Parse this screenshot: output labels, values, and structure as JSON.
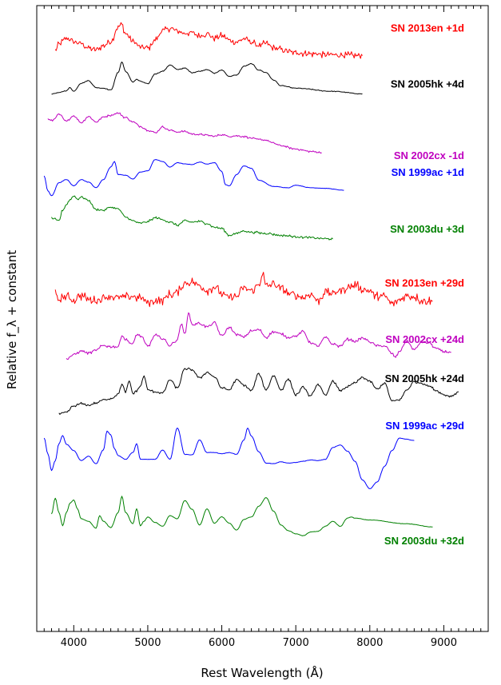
{
  "chart_data": {
    "type": "line",
    "title": "",
    "xlabel": "Rest Wavelength  (Å)",
    "ylabel": "Relative f_λ + constant",
    "xlim": [
      3500,
      9600
    ],
    "x_ticks": [
      4000,
      5000,
      6000,
      7000,
      8000,
      9000
    ],
    "grid": false,
    "legend": "labels placed beside each spectrum",
    "series": [
      {
        "name": "SN 2013en +1d",
        "color": "#ff0000",
        "noise": 0.8,
        "x": [
          3750,
          3800,
          3900,
          4000,
          4100,
          4200,
          4300,
          4400,
          4500,
          4600,
          4650,
          4700,
          4800,
          4900,
          5000,
          5100,
          5200,
          5300,
          5400,
          5500,
          5600,
          5700,
          5800,
          5900,
          6000,
          6100,
          6200,
          6300,
          6400,
          6500,
          6600,
          6700,
          6800,
          6900,
          7000,
          7200,
          7400,
          7600,
          7800,
          7900
        ],
        "y": [
          92.8,
          93.8,
          94.8,
          94.2,
          94.0,
          93.2,
          92.9,
          93.6,
          94.3,
          96.6,
          97.0,
          95.5,
          94.2,
          93.4,
          93.2,
          94.5,
          96.0,
          96.4,
          95.9,
          95.6,
          95.7,
          95.1,
          95.5,
          94.8,
          95.2,
          94.5,
          94.2,
          94.7,
          94.2,
          93.6,
          93.9,
          93.2,
          93.0,
          92.6,
          92.5,
          92.3,
          92.2,
          92.1,
          92.0,
          92.0
        ]
      },
      {
        "name": "SN 2005hk +4d",
        "color": "#000000",
        "noise": 0.1,
        "x": [
          3700,
          3800,
          3900,
          3950,
          4000,
          4100,
          4200,
          4300,
          4400,
          4500,
          4600,
          4650,
          4700,
          4800,
          4850,
          4900,
          5000,
          5100,
          5200,
          5300,
          5400,
          5500,
          5600,
          5700,
          5800,
          5900,
          6000,
          6100,
          6200,
          6300,
          6400,
          6500,
          6600,
          6700,
          6800,
          7000,
          7500,
          7900
        ],
        "y": [
          85.9,
          86.1,
          86.4,
          86.9,
          86.3,
          87.6,
          88.0,
          86.9,
          86.8,
          86.5,
          89.3,
          91.0,
          89.5,
          87.8,
          88.2,
          87.9,
          87.5,
          89.1,
          89.5,
          90.5,
          89.8,
          90.0,
          89.3,
          89.5,
          89.8,
          89.2,
          89.7,
          88.7,
          88.9,
          90.3,
          90.7,
          89.7,
          89.3,
          88.1,
          87.2,
          86.8,
          86.3,
          85.9
        ]
      },
      {
        "name": "SN 2002cx -1d",
        "color": "#bf00bf",
        "noise": 0.25,
        "x": [
          3650,
          3700,
          3800,
          3900,
          4000,
          4100,
          4200,
          4300,
          4400,
          4500,
          4600,
          4700,
          4800,
          4900,
          5000,
          5100,
          5200,
          5300,
          5400,
          5500,
          5600,
          5700,
          5800,
          5900,
          6000,
          6100,
          6200,
          6300,
          6400,
          6500,
          6600,
          6700,
          6800,
          7000,
          7200,
          7350
        ],
        "y": [
          81.9,
          81.6,
          82.6,
          81.5,
          82.4,
          81.3,
          82.3,
          81.4,
          82.2,
          82.5,
          82.8,
          82.1,
          81.4,
          80.7,
          80.1,
          79.7,
          80.6,
          80.1,
          79.8,
          79.9,
          79.5,
          79.4,
          79.3,
          79.1,
          79.4,
          79.1,
          79.2,
          79.1,
          78.8,
          78.6,
          78.5,
          78.0,
          77.6,
          77.1,
          76.7,
          76.5
        ]
      },
      {
        "name": "SN 1999ac +1d",
        "color": "#0000ff",
        "noise": 0.05,
        "x": [
          3600,
          3650,
          3700,
          3800,
          3900,
          4000,
          4100,
          4200,
          4300,
          4400,
          4500,
          4550,
          4600,
          4700,
          4800,
          4900,
          5000,
          5100,
          5200,
          5300,
          5400,
          5500,
          5600,
          5700,
          5800,
          5900,
          6000,
          6050,
          6100,
          6200,
          6300,
          6400,
          6500,
          6700,
          6900,
          7000,
          7200,
          7400,
          7650
        ],
        "y": [
          72.8,
          70.4,
          69.6,
          71.7,
          72.2,
          71.2,
          72.2,
          71.8,
          70.9,
          72.2,
          74.2,
          75.1,
          73.0,
          72.9,
          72.3,
          73.4,
          73.6,
          75.4,
          75.1,
          74.2,
          74.9,
          74.7,
          74.6,
          75.0,
          74.7,
          74.9,
          73.5,
          71.4,
          71.2,
          73.0,
          74.4,
          74.0,
          72.1,
          71.1,
          70.9,
          71.3,
          70.9,
          70.8,
          70.5
        ]
      },
      {
        "name": "SN 2003du +3d",
        "color": "#008000",
        "noise": 0.3,
        "x": [
          3700,
          3800,
          3850,
          3900,
          3950,
          4000,
          4050,
          4100,
          4200,
          4300,
          4400,
          4500,
          4600,
          4700,
          4800,
          4900,
          5000,
          5100,
          5200,
          5300,
          5400,
          5500,
          5600,
          5700,
          5800,
          5900,
          6000,
          6100,
          6200,
          6300,
          6400,
          6600,
          6800,
          7000,
          7200,
          7500
        ],
        "y": [
          66.0,
          65.6,
          67.3,
          68.2,
          69.0,
          69.6,
          69.1,
          69.4,
          68.9,
          67.4,
          67.3,
          67.8,
          67.5,
          66.2,
          65.6,
          65.2,
          65.5,
          66.1,
          65.8,
          65.4,
          64.9,
          65.6,
          65.4,
          65.5,
          65.2,
          64.6,
          64.4,
          63.3,
          63.6,
          64.0,
          63.8,
          63.6,
          63.3,
          63.1,
          62.9,
          62.7
        ]
      },
      {
        "name": "SN 2013en +29d",
        "color": "#ff0000",
        "noise": 1.1,
        "x": [
          3750,
          3800,
          3900,
          4000,
          4100,
          4200,
          4300,
          4400,
          4500,
          4600,
          4700,
          4800,
          4900,
          5000,
          5100,
          5200,
          5300,
          5400,
          5500,
          5600,
          5700,
          5800,
          5900,
          6000,
          6100,
          6200,
          6300,
          6400,
          6500,
          6550,
          6600,
          6700,
          6800,
          6900,
          7000,
          7100,
          7200,
          7300,
          7400,
          7500,
          7600,
          7700,
          7800,
          7900,
          8000,
          8100,
          8200,
          8300,
          8400,
          8500,
          8600,
          8700,
          8850
        ],
        "y": [
          53.8,
          53.0,
          53.5,
          52.9,
          53.7,
          53.0,
          52.8,
          53.4,
          53.6,
          53.3,
          53.4,
          53.6,
          53.2,
          52.7,
          52.8,
          53.0,
          53.8,
          54.2,
          55.6,
          55.8,
          55.3,
          54.5,
          55.1,
          53.9,
          53.3,
          53.5,
          54.9,
          54.5,
          55.4,
          57.1,
          55.1,
          55.5,
          54.9,
          54.0,
          53.8,
          53.3,
          53.9,
          52.9,
          54.2,
          54.0,
          54.6,
          54.9,
          55.3,
          54.6,
          54.4,
          53.5,
          53.5,
          52.4,
          53.0,
          53.7,
          53.5,
          52.9,
          52.8
        ]
      },
      {
        "name": "SN 2002cx +24d",
        "color": "#bf00bf",
        "noise": 0.35,
        "x": [
          3900,
          4000,
          4100,
          4200,
          4300,
          4400,
          4500,
          4600,
          4650,
          4700,
          4800,
          4850,
          4900,
          5000,
          5100,
          5200,
          5300,
          5400,
          5450,
          5500,
          5550,
          5600,
          5700,
          5800,
          5900,
          6000,
          6100,
          6200,
          6300,
          6400,
          6500,
          6600,
          6700,
          6800,
          6900,
          7000,
          7100,
          7200,
          7300,
          7400,
          7500,
          7600,
          7700,
          7800,
          7900,
          8000,
          8100,
          8200,
          8300,
          8350,
          8400,
          8500,
          8600,
          8700,
          8800,
          8900,
          9000,
          9100
        ],
        "y": [
          43.6,
          44.2,
          44.8,
          44.5,
          44.9,
          45.7,
          45.5,
          45.5,
          47.3,
          46.6,
          45.9,
          47.5,
          47.2,
          45.6,
          47.3,
          46.8,
          45.7,
          46.6,
          49.1,
          47.5,
          50.8,
          49.0,
          49.2,
          48.7,
          49.3,
          47.2,
          48.6,
          47.4,
          47.1,
          48.0,
          48.2,
          47.0,
          47.9,
          47.5,
          47.0,
          47.2,
          47.9,
          46.1,
          45.6,
          47.0,
          45.9,
          45.6,
          46.7,
          46.4,
          46.9,
          46.3,
          45.6,
          45.6,
          44.4,
          43.8,
          44.8,
          46.4,
          45.0,
          46.3,
          46.1,
          45.2,
          44.7,
          44.6
        ]
      },
      {
        "name": "SN 2005hk +24d",
        "color": "#000000",
        "noise": 0.3,
        "x": [
          3800,
          3900,
          4000,
          4100,
          4200,
          4300,
          4400,
          4500,
          4600,
          4650,
          4700,
          4750,
          4800,
          4850,
          4900,
          4950,
          5000,
          5100,
          5200,
          5300,
          5400,
          5500,
          5550,
          5600,
          5700,
          5800,
          5900,
          6000,
          6100,
          6200,
          6300,
          6400,
          6500,
          6600,
          6700,
          6800,
          6900,
          7000,
          7100,
          7200,
          7300,
          7400,
          7500,
          7600,
          7700,
          7800,
          7900,
          8000,
          8100,
          8200,
          8300,
          8400,
          8500,
          8600,
          8700,
          8800,
          8900,
          9000,
          9100,
          9200
        ],
        "y": [
          34.7,
          35.0,
          36.0,
          36.4,
          36.1,
          36.5,
          37.0,
          37.2,
          37.9,
          39.5,
          38.2,
          40.0,
          38.0,
          38.5,
          39.2,
          40.8,
          38.6,
          38.3,
          38.1,
          40.2,
          38.9,
          41.9,
          41.9,
          41.8,
          40.5,
          41.4,
          40.7,
          38.9,
          38.6,
          40.2,
          39.4,
          38.5,
          41.2,
          38.6,
          40.9,
          38.6,
          40.3,
          37.8,
          39.0,
          37.6,
          39.5,
          37.7,
          40.0,
          38.5,
          39.1,
          39.7,
          40.6,
          40.0,
          38.7,
          39.7,
          36.8,
          37.0,
          38.6,
          39.9,
          39.7,
          39.2,
          38.5,
          37.8,
          37.6,
          38.3
        ]
      },
      {
        "name": "SN 1999ac +29d",
        "color": "#0000ff",
        "noise": 0.05,
        "x": [
          3600,
          3650,
          3700,
          3750,
          3800,
          3850,
          3900,
          4000,
          4100,
          4200,
          4300,
          4400,
          4450,
          4500,
          4550,
          4600,
          4700,
          4800,
          4850,
          4900,
          5000,
          5100,
          5200,
          5300,
          5400,
          5500,
          5600,
          5700,
          5800,
          5900,
          6000,
          6100,
          6200,
          6300,
          6350,
          6400,
          6500,
          6600,
          6700,
          6800,
          6900,
          7000,
          7100,
          7200,
          7300,
          7400,
          7500,
          7600,
          7700,
          7800,
          7900,
          8000,
          8100,
          8200,
          8300,
          8400,
          8500,
          8600
        ],
        "y": [
          30.9,
          28.4,
          25.7,
          27.3,
          30.0,
          31.3,
          29.9,
          28.9,
          27.3,
          28.0,
          26.8,
          29.0,
          32.0,
          31.4,
          29.2,
          28.1,
          27.5,
          28.6,
          30.0,
          27.5,
          27.5,
          27.5,
          29.0,
          27.5,
          32.5,
          28.3,
          28.2,
          30.6,
          28.6,
          28.6,
          28.4,
          28.6,
          28.3,
          30.6,
          32.5,
          31.2,
          28.7,
          26.9,
          26.8,
          27.1,
          26.9,
          27.0,
          27.2,
          27.4,
          27.3,
          27.5,
          29.4,
          29.8,
          28.8,
          27.2,
          24.2,
          22.8,
          23.9,
          26.4,
          28.9,
          30.9,
          30.7,
          30.5
        ]
      },
      {
        "name": "SN 2003du +32d",
        "color": "#008000",
        "noise": 0.05,
        "x": [
          3700,
          3750,
          3800,
          3850,
          3900,
          3950,
          4000,
          4050,
          4100,
          4200,
          4300,
          4350,
          4400,
          4500,
          4600,
          4650,
          4700,
          4800,
          4850,
          4900,
          4950,
          5000,
          5100,
          5200,
          5300,
          5400,
          5500,
          5600,
          5700,
          5800,
          5900,
          6000,
          6100,
          6200,
          6300,
          6400,
          6500,
          6600,
          6700,
          6800,
          6900,
          7000,
          7100,
          7200,
          7300,
          7400,
          7500,
          7600,
          7700,
          7750,
          7800,
          8000,
          8500,
          8850
        ],
        "y": [
          18.8,
          21.3,
          19.0,
          16.9,
          19.0,
          20.5,
          21.0,
          19.6,
          18.0,
          17.6,
          16.5,
          18.5,
          17.6,
          16.6,
          19.0,
          21.6,
          19.0,
          17.2,
          19.6,
          16.9,
          17.6,
          18.3,
          17.4,
          16.8,
          18.5,
          18.0,
          20.9,
          19.5,
          17.0,
          19.6,
          17.3,
          18.3,
          17.3,
          16.2,
          17.9,
          18.3,
          20.0,
          21.4,
          19.2,
          17.0,
          16.1,
          15.6,
          15.3,
          15.9,
          16.0,
          16.8,
          17.6,
          16.8,
          18.1,
          18.3,
          18.1,
          17.8,
          17.2,
          16.7
        ]
      }
    ]
  }
}
